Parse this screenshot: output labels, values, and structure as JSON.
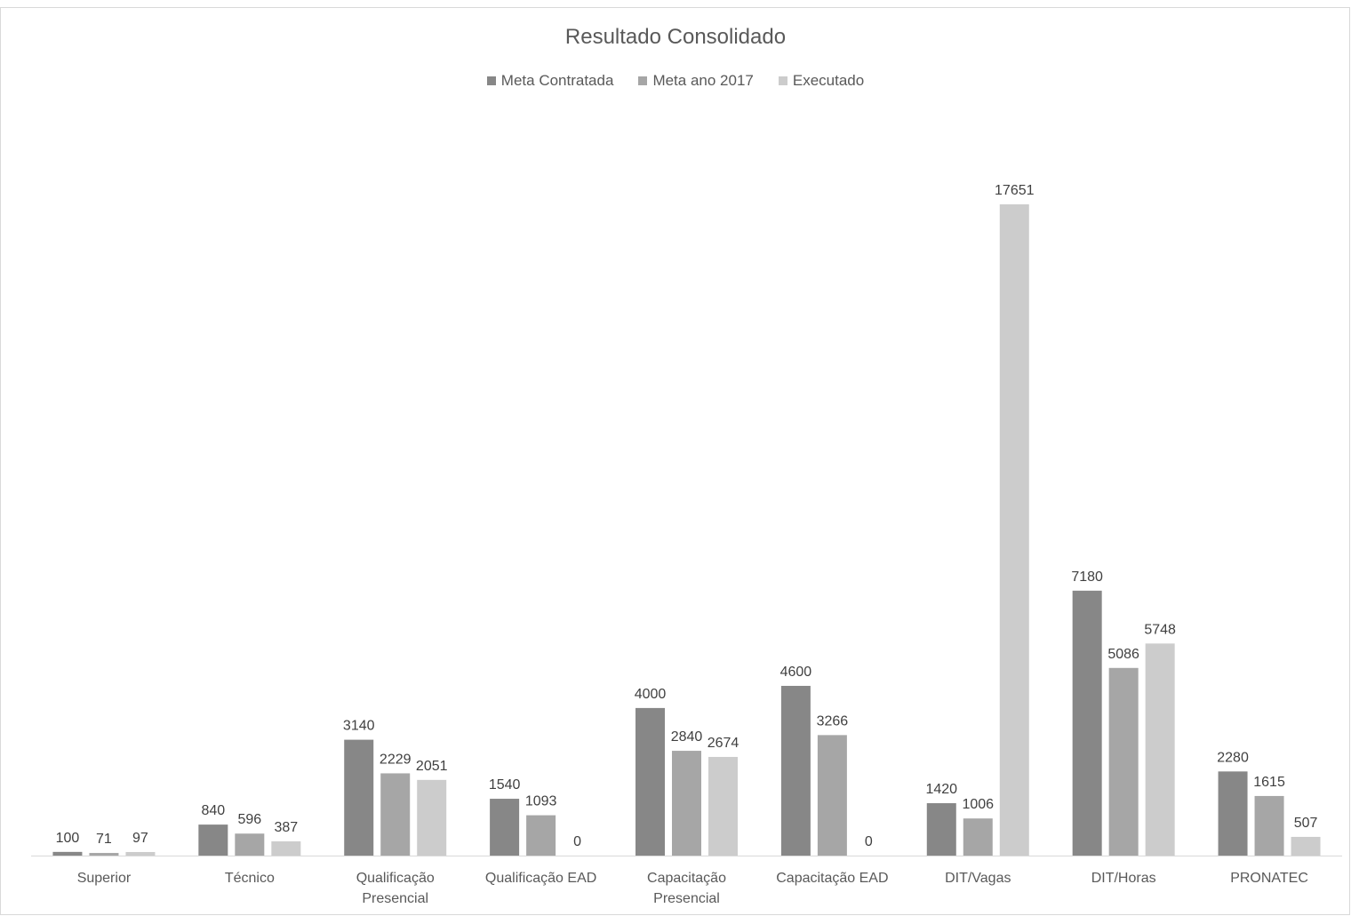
{
  "chart_data": {
    "type": "bar",
    "title": "Resultado Consolidado",
    "xlabel": "",
    "ylabel": "",
    "ylim": [
      0,
      17651
    ],
    "legend_position": "top",
    "grid": false,
    "categories": [
      "Superior",
      "Técnico",
      "Qualificação Presencial",
      "Qualificação EAD",
      "Capacitação Presencial",
      "Capacitação EAD",
      "DIT/Vagas",
      "DIT/Horas",
      "PRONATEC"
    ],
    "series": [
      {
        "name": "Meta Contratada",
        "color": "#878787",
        "values": [
          100,
          840,
          3140,
          1540,
          4000,
          4600,
          1420,
          7180,
          2280
        ]
      },
      {
        "name": "Meta ano 2017",
        "color": "#a6a6a6",
        "values": [
          71,
          596,
          2229,
          1093,
          2840,
          3266,
          1006,
          5086,
          1615
        ]
      },
      {
        "name": "Executado",
        "color": "#cccccc",
        "values": [
          97,
          387,
          2051,
          0,
          2674,
          0,
          17651,
          5748,
          507
        ]
      }
    ]
  }
}
